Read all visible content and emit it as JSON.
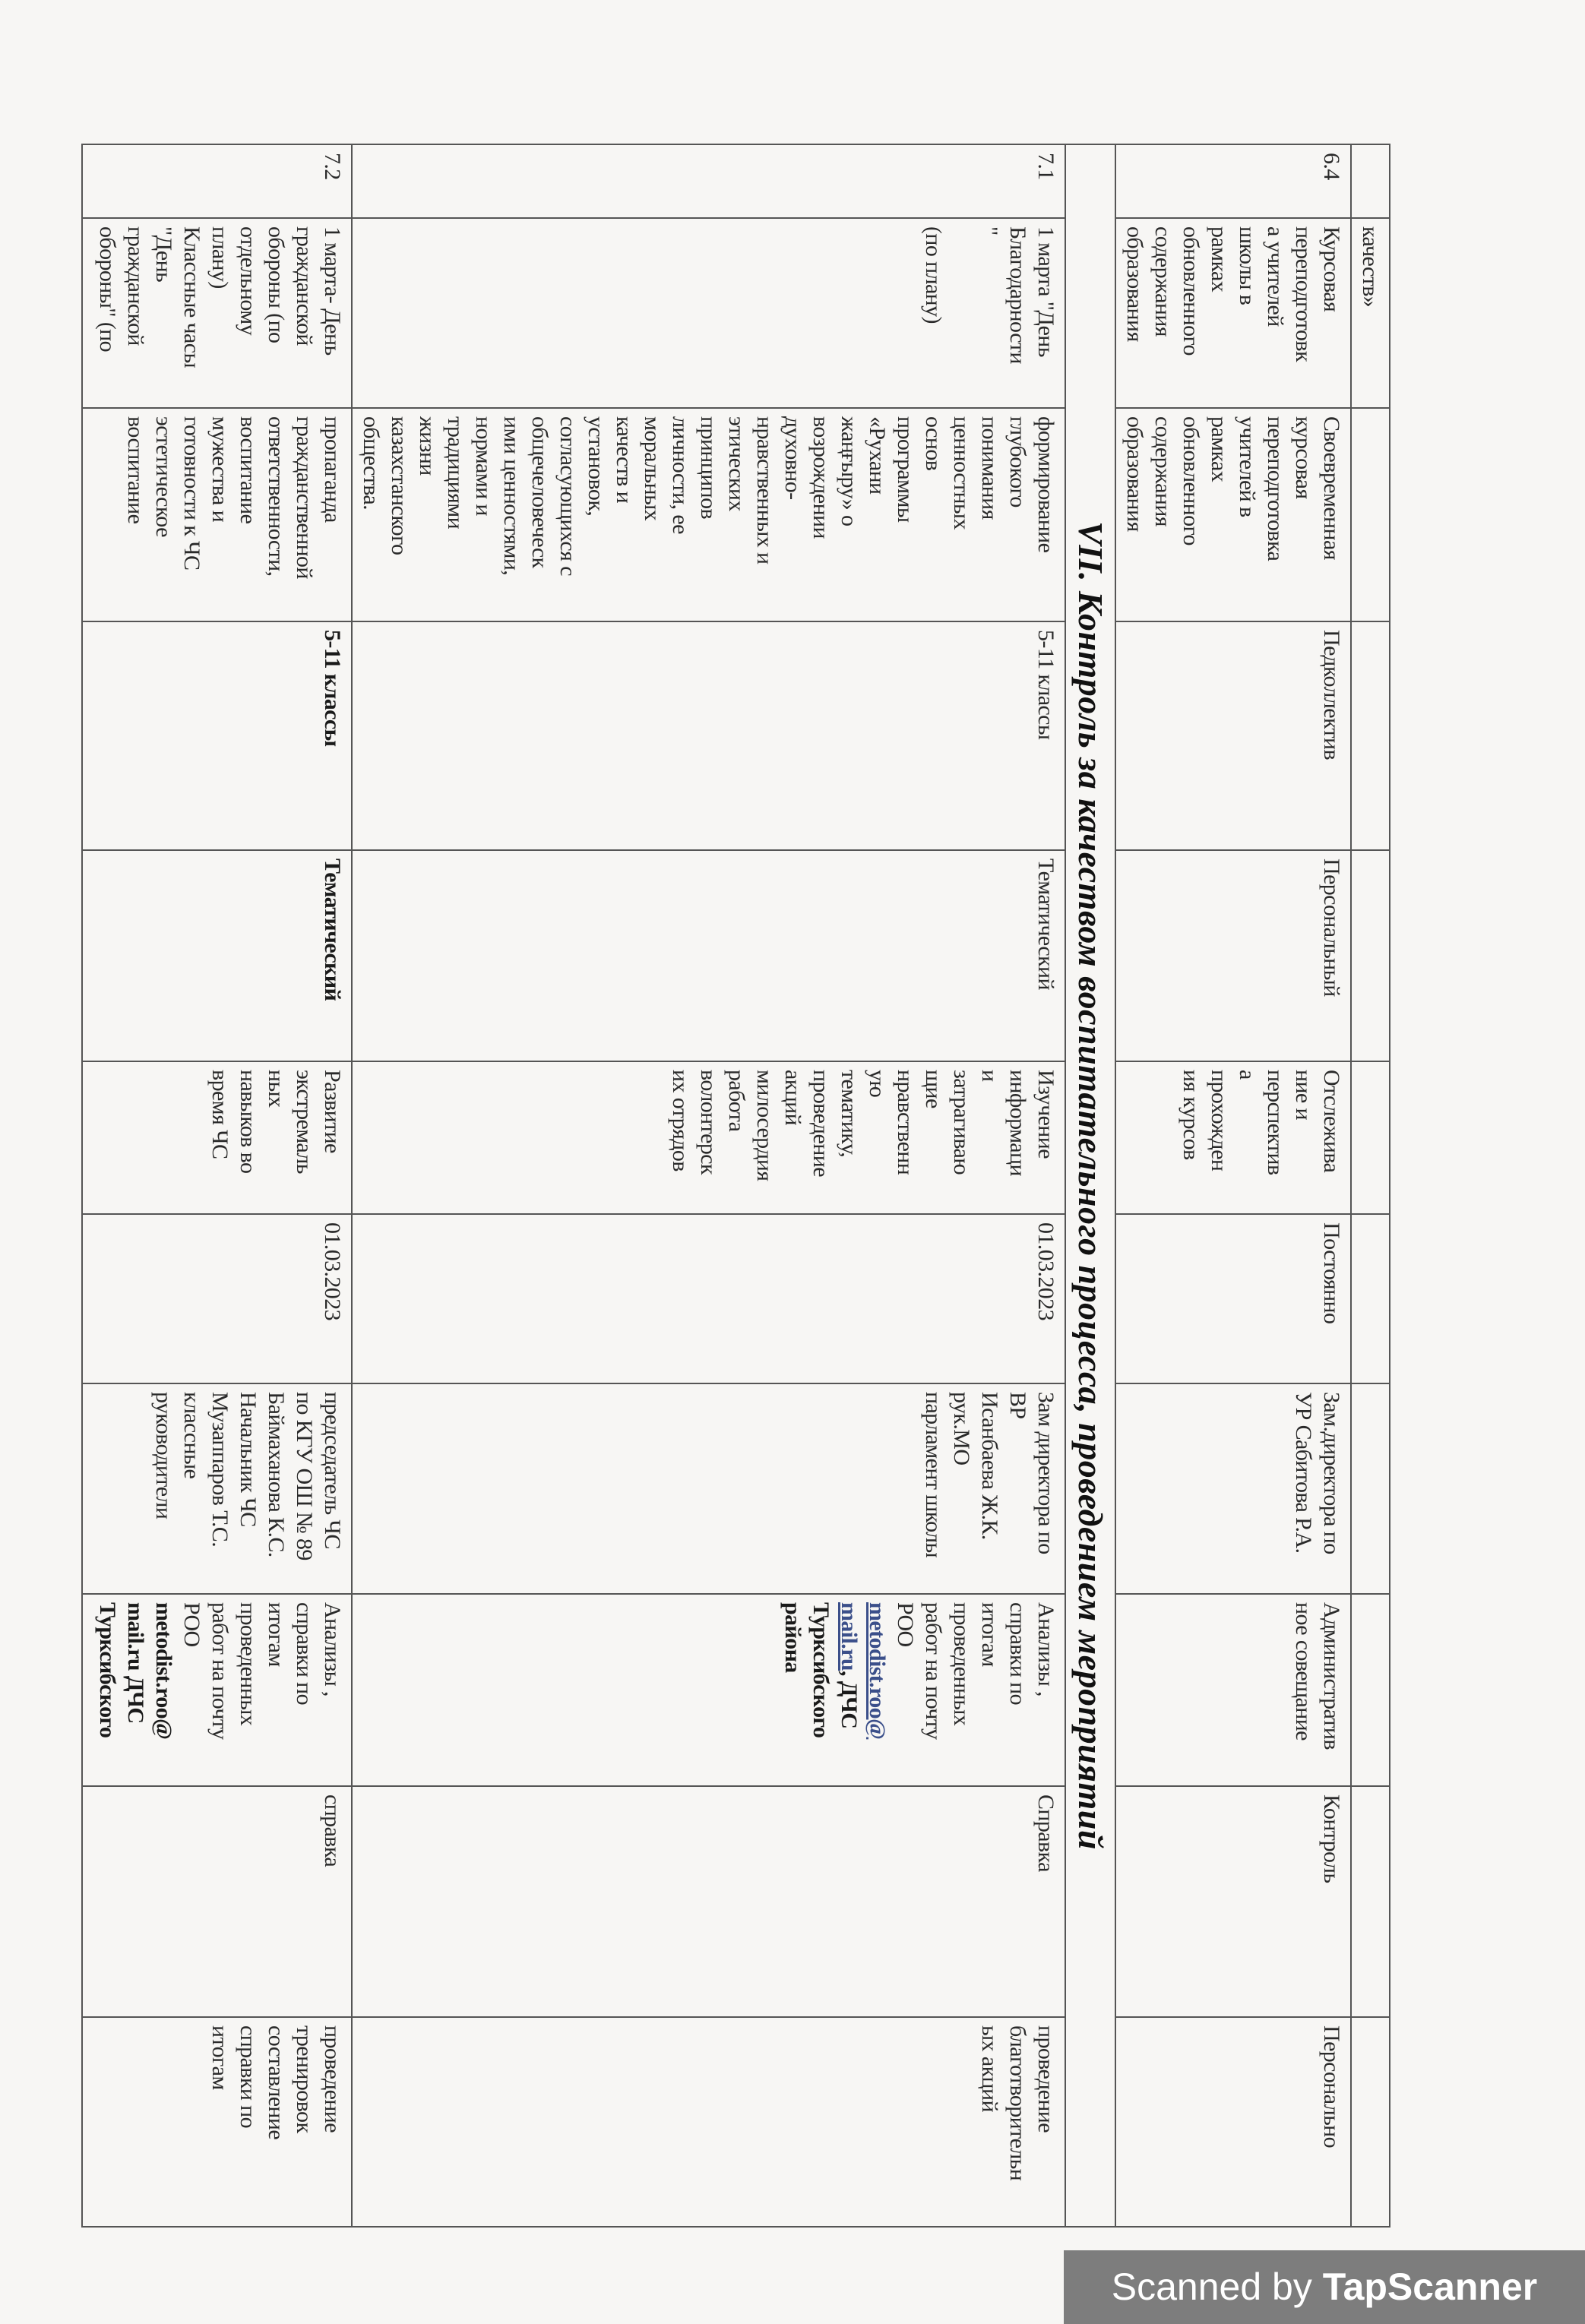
{
  "section_title": "VII. Контроль за качеством воспитательного процесса, проведением мероприятий",
  "rows_before": [
    {
      "cells": [
        "",
        "качеств»",
        "",
        "",
        "",
        "",
        "",
        "",
        "",
        "",
        ""
      ]
    },
    {
      "cells": [
        "6.4",
        "Курсовая\nпереподготовк\nа учителей\nшколы в\nрамках\nобновленного\nсодержания\nобразования",
        "Своевременная\nкурсовая\nпереподготовка\nучителей в\nрамках\nобновленного\nсодержания\nобразования",
        "Педколлектив",
        "Персональный",
        "Отслежива\nние и\nперспектив\nа\nпрохожден\nия курсов",
        "Постоянно",
        "Зам.директора по\nУР Сабитова Р.А.",
        "Административ\nное совещание",
        "Контроль",
        "Персонально"
      ]
    }
  ],
  "rows_after": [
    {
      "cells": [
        "7.1",
        "1 марта \"День\nБлагодарности\n\"\n\n(по плану)",
        "формирование\nглубокого\nпонимания\nценностных\nоснов\nпрограммы\n«Рухани\nжаңғыру» о\nвозрождении\nдуховно-\nнравственных и\nэтических\nпринципов\nличности, ее\nморальных\nкачеств и\nустановок,\nсогласующихся с\nобщечеловеческ\nими ценностями,\nнормами и\nтрадициями\nжизни\nказахстанского\nобщества.",
        "5-11  классы",
        "Тематический",
        "Изучение\nинформаци\nи\nзатрагиваю\nщие\nнравственн\nую\nтематику,\nпроведение\nакций\nмилосердия\nработа\nволонтерск\nих отрядов",
        "01.03.2023",
        "Зам директора по\nВР\nИсанбаева Ж.К.\nрук.МО\nпарламент школы",
        [
          {
            "text": "Анализы ,\nсправки по\nитогам\nпроведенных\nработ на почту\nРОО\n"
          },
          {
            "text": "metodist.roo@\nmail.ru",
            "style": "link"
          },
          {
            "text": ", ДЧС\nТурксибского\nрайона",
            "style": "bold"
          }
        ],
        "Справка",
        "проведение\nблаготворительн\nых акций"
      ]
    },
    {
      "cells": [
        "7.2",
        "1 марта- День\nгражданской\nобороны (по\nотдельному\nплану)\nКлассные часы\n\"День\nгражданской\nобороны\" (по",
        "пропаганда\nгражданственной\nответственности,\nвоспитание\nмужества и\nготовности к ЧС\nэстетическое\nвоспитание",
        [
          {
            "text": "5-11 классы",
            "style": "bold"
          }
        ],
        [
          {
            "text": "Тематический",
            "style": "bold"
          }
        ],
        "Развитие\nэкстремаль\nных\nнавыков  во\nвремя ЧС",
        "01.03.2023",
        "председатель ЧС\nпо КГУ ОШ № 89\nБаймаханова К.С.\nНачальник  ЧС\nМузаппаров Т.С.\nклассные\nруководители",
        [
          {
            "text": "Анализы ,\nсправки по\nитогам\nпроведенных\nработ на почту\nРОО\n"
          },
          {
            "text": "metodist.roo@\nmail.ru ДЧС\nТурксибского",
            "style": "bold"
          }
        ],
        "справка",
        "проведение\nтренировок\nсоставление\nсправки по\nитогам"
      ]
    }
  ],
  "watermark": {
    "prefix": "Scanned by ",
    "brand": "TapScanner"
  }
}
